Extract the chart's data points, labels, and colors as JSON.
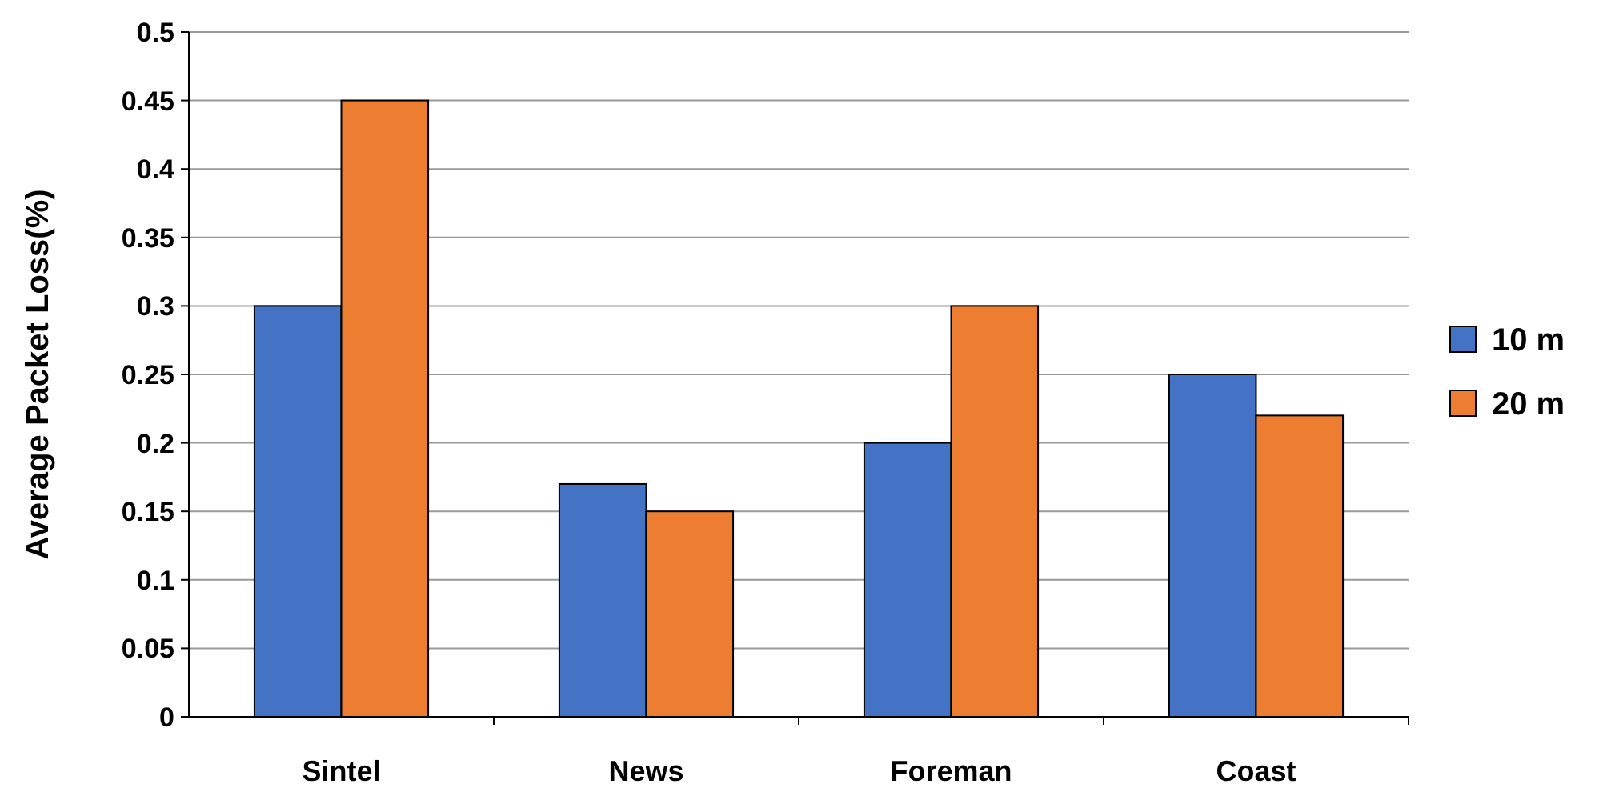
{
  "chart_data": {
    "type": "bar",
    "ylabel": "Average Packet Loss(%)",
    "categories": [
      "Sintel",
      "News",
      "Foreman",
      "Coast"
    ],
    "series": [
      {
        "name": "10 m",
        "color": "#4472c4",
        "values": [
          0.3,
          0.17,
          0.2,
          0.25
        ]
      },
      {
        "name": "20 m",
        "color": "#ed7d31",
        "values": [
          0.45,
          0.15,
          0.3,
          0.22
        ]
      }
    ],
    "ylim": [
      0,
      0.5
    ],
    "yticks": [
      0,
      0.05,
      0.1,
      0.15,
      0.2,
      0.25,
      0.3,
      0.35,
      0.4,
      0.45,
      0.5
    ],
    "grid": "y",
    "legend": "right"
  }
}
